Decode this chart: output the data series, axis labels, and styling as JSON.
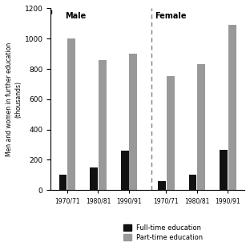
{
  "title_male": "Male",
  "title_female": "Female",
  "ylabel": "Men and women in further education\n(thousands)",
  "periods": [
    "1970/71",
    "1980/81",
    "1990/91"
  ],
  "male_fulltime": [
    100,
    150,
    260
  ],
  "male_parttime": [
    1000,
    860,
    900
  ],
  "female_fulltime": [
    60,
    100,
    265
  ],
  "female_parttime": [
    750,
    830,
    1090
  ],
  "ylim": [
    0,
    1200
  ],
  "yticks": [
    0,
    200,
    400,
    600,
    800,
    1000,
    1200
  ],
  "color_fulltime": "#111111",
  "color_parttime": "#999999",
  "bar_width": 0.38,
  "background_color": "#ffffff"
}
